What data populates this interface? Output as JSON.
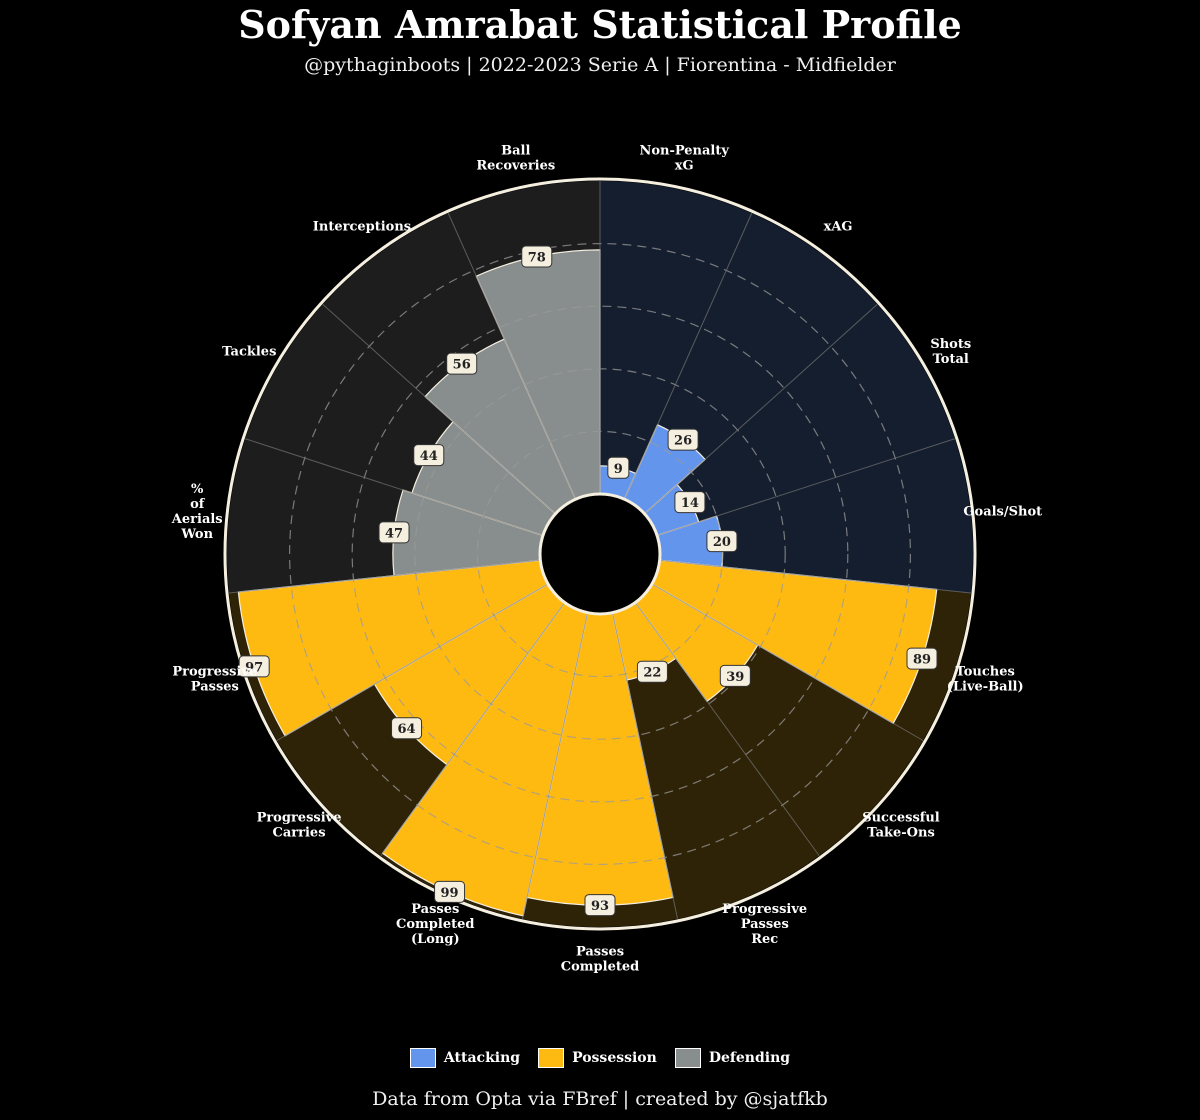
{
  "header": {
    "title": "Sofyan Amrabat Statistical Profile",
    "subtitle": "@pythaginboots | 2022-2023 Serie A | Fiorentina - Midfielder"
  },
  "footer": {
    "text": "Data from Opta via FBref | created by @sjatfkb"
  },
  "colors": {
    "Attacking": "#6495ED",
    "Possession": "#FFBA12",
    "Defending": "#888E8D",
    "Attacking_bg": "#151E2E",
    "Possession_bg": "#2E2307",
    "Defending_bg": "#1C1D1C",
    "label_box": "#F5EFE0"
  },
  "legend": [
    {
      "name": "Attacking",
      "color": "#6495ED"
    },
    {
      "name": "Possession",
      "color": "#FFBA12"
    },
    {
      "name": "Defending",
      "color": "#888E8D"
    }
  ],
  "chart_data": {
    "type": "radial-bar",
    "rlim": [
      0,
      100
    ],
    "grid": true,
    "legend_position": "bottom",
    "categories": [
      {
        "label": [
          "Non-Penalty",
          "xG"
        ],
        "value": 9,
        "group": "Attacking"
      },
      {
        "label": [
          "xAG"
        ],
        "value": 26,
        "group": "Attacking"
      },
      {
        "label": [
          "Shots",
          "Total"
        ],
        "value": 14,
        "group": "Attacking"
      },
      {
        "label": [
          "Goals/Shot"
        ],
        "value": 20,
        "group": "Attacking"
      },
      {
        "label": [
          "Touches",
          "(Live-Ball)"
        ],
        "value": 89,
        "group": "Possession"
      },
      {
        "label": [
          "Successful",
          "Take-Ons"
        ],
        "value": 39,
        "group": "Possession"
      },
      {
        "label": [
          "Progressive",
          "Passes",
          "Rec"
        ],
        "value": 22,
        "group": "Possession"
      },
      {
        "label": [
          "Passes",
          "Completed"
        ],
        "value": 93,
        "group": "Possession"
      },
      {
        "label": [
          "Passes",
          "Completed",
          "(Long)"
        ],
        "value": 99,
        "group": "Possession"
      },
      {
        "label": [
          "Progressive",
          "Carries"
        ],
        "value": 64,
        "group": "Possession"
      },
      {
        "label": [
          "Progressive",
          "Passes"
        ],
        "value": 97,
        "group": "Possession"
      },
      {
        "label": [
          "%",
          "of",
          "Aerials",
          "Won"
        ],
        "value": 47,
        "group": "Defending"
      },
      {
        "label": [
          "Tackles"
        ],
        "value": 44,
        "group": "Defending"
      },
      {
        "label": [
          "Interceptions"
        ],
        "value": 56,
        "group": "Defending"
      },
      {
        "label": [
          "Ball",
          "Recoveries"
        ],
        "value": 78,
        "group": "Defending"
      }
    ]
  }
}
